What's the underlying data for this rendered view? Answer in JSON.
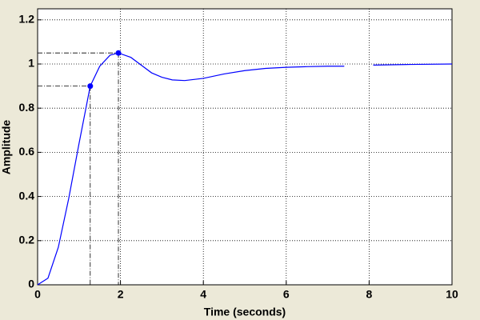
{
  "chart_data": {
    "type": "line",
    "xlabel": "Time (seconds)",
    "ylabel": "Amplitude",
    "x": [
      0,
      0.25,
      0.5,
      0.75,
      1.0,
      1.27,
      1.5,
      1.75,
      1.95,
      2.25,
      2.5,
      2.75,
      3.0,
      3.25,
      3.55,
      4.0,
      4.5,
      5.0,
      5.5,
      6.0,
      6.5,
      7.0,
      7.4,
      7.75,
      8.1,
      9.0,
      10.0
    ],
    "series": [
      {
        "color": "#0000ff",
        "values": [
          0,
          0.03,
          0.17,
          0.39,
          0.64,
          0.9,
          0.99,
          1.04,
          1.05,
          1.03,
          0.995,
          0.96,
          0.94,
          0.928,
          0.925,
          0.935,
          0.955,
          0.97,
          0.98,
          0.985,
          0.988,
          0.99,
          0.99,
          null,
          0.995,
          0.998,
          1.0
        ]
      }
    ],
    "markers": [
      {
        "x": 1.27,
        "y": 0.9
      },
      {
        "x": 1.95,
        "y": 1.05
      }
    ],
    "xlim": [
      0,
      10
    ],
    "ylim": [
      0,
      1.25
    ],
    "xticks": [
      0,
      2,
      4,
      6,
      8,
      10
    ],
    "yticks": [
      0,
      0.2,
      0.4,
      0.6,
      0.8,
      1,
      1.2
    ],
    "grid": true
  }
}
